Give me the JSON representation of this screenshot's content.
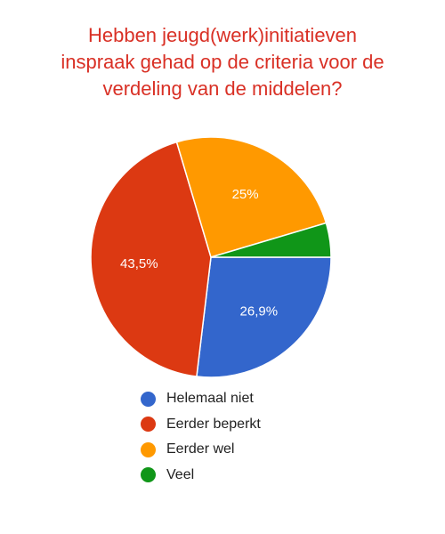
{
  "chart_data": {
    "type": "pie",
    "title_lines": [
      "Hebben jeugd(werk)initiatieven",
      "inspraak gehad op de criteria voor de",
      "verdeling van de middelen?"
    ],
    "legend_position": "bottom",
    "slices": [
      {
        "name": "Helemaal niet",
        "value": 26.9,
        "label": "26,9%",
        "color": "#3366cc"
      },
      {
        "name": "Eerder beperkt",
        "value": 43.5,
        "label": "43,5%",
        "color": "#dc3912"
      },
      {
        "name": "Eerder wel",
        "value": 25.0,
        "label": "25%",
        "color": "#ff9900"
      },
      {
        "name": "Veel",
        "value": 4.6,
        "label": "",
        "color": "#109618"
      }
    ]
  }
}
